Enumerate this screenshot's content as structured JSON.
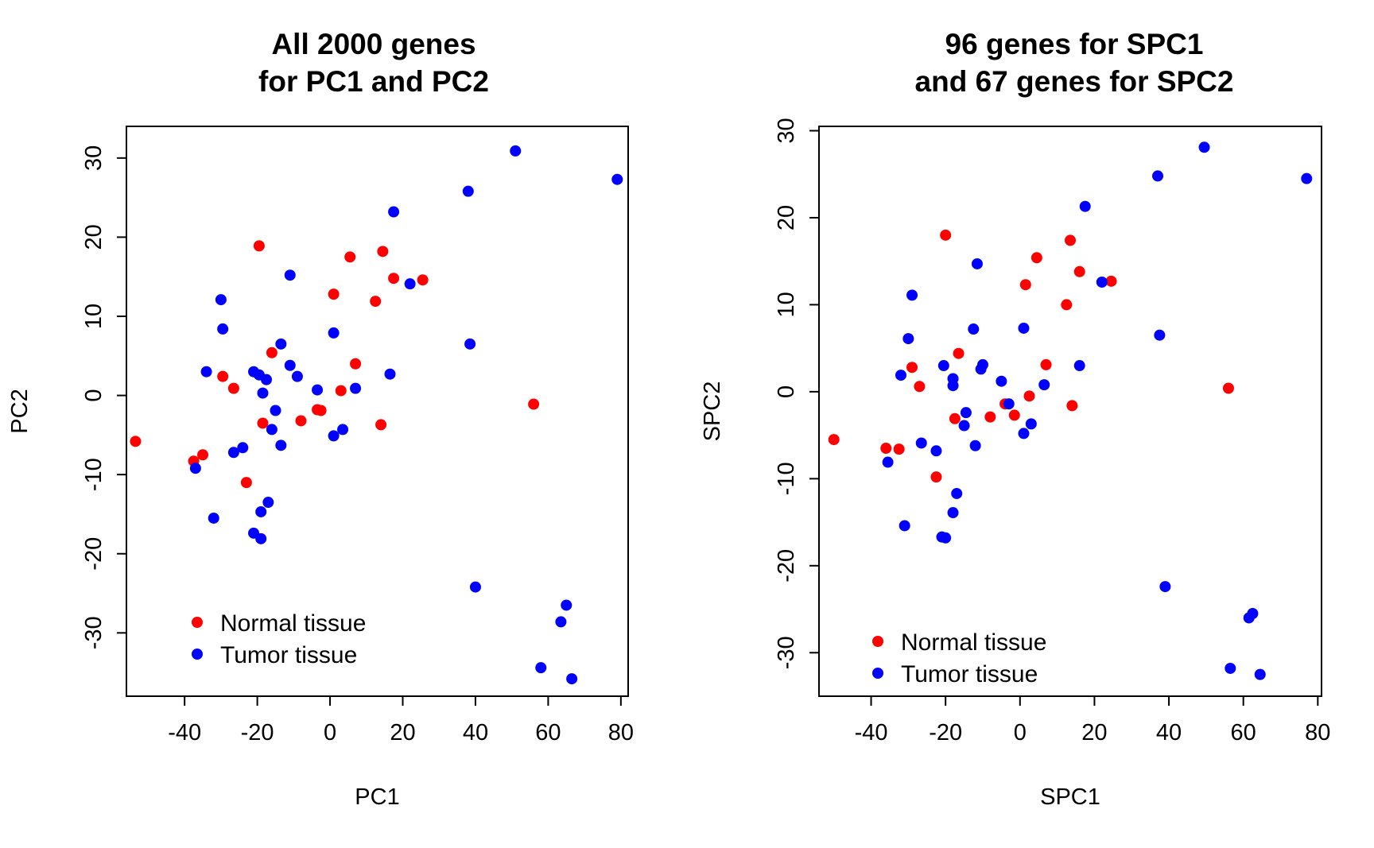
{
  "chart_data": [
    {
      "type": "scatter",
      "title": "All 2000 genes\nfor PC1 and PC2",
      "xlabel": "PC1",
      "ylabel": "PC2",
      "xlim": [
        -56,
        82
      ],
      "ylim": [
        -38,
        34
      ],
      "xticks": [
        -40,
        -20,
        0,
        20,
        40,
        60,
        80
      ],
      "yticks": [
        -30,
        -20,
        -10,
        0,
        10,
        20,
        30
      ],
      "legend": {
        "placement": "bottom-left",
        "entries": [
          "Normal tissue",
          "Tumor tissue"
        ]
      },
      "series": [
        {
          "name": "Normal tissue",
          "color": "#ff0000",
          "points": [
            [
              -53.5,
              -5.8
            ],
            [
              -37.5,
              -8.3
            ],
            [
              -35,
              -7.5
            ],
            [
              -29.5,
              2.4
            ],
            [
              -26.5,
              0.9
            ],
            [
              -23,
              -11
            ],
            [
              -19.5,
              18.9
            ],
            [
              -18.5,
              -3.5
            ],
            [
              -16,
              5.4
            ],
            [
              -8,
              -3.2
            ],
            [
              -3.5,
              -1.8
            ],
            [
              -2.5,
              -1.9
            ],
            [
              1,
              12.8
            ],
            [
              3,
              0.6
            ],
            [
              5.5,
              17.5
            ],
            [
              7,
              4
            ],
            [
              12.5,
              11.9
            ],
            [
              14,
              -3.7
            ],
            [
              14.5,
              18.2
            ],
            [
              17.5,
              14.8
            ],
            [
              25.5,
              14.6
            ],
            [
              56,
              -1.1
            ]
          ]
        },
        {
          "name": "Tumor tissue",
          "color": "#0000ff",
          "points": [
            [
              -37,
              -9.2
            ],
            [
              -34,
              3
            ],
            [
              -30,
              12.1
            ],
            [
              -29.5,
              8.4
            ],
            [
              -32,
              -15.5
            ],
            [
              -26.5,
              -7.2
            ],
            [
              -24,
              -6.6
            ],
            [
              -21,
              3
            ],
            [
              -19.5,
              2.6
            ],
            [
              -18.5,
              0.3
            ],
            [
              -17.5,
              2
            ],
            [
              -16,
              -4.3
            ],
            [
              -15,
              -1.9
            ],
            [
              -13.5,
              6.5
            ],
            [
              -13.5,
              -6.3
            ],
            [
              -11,
              3.8
            ],
            [
              -11,
              15.2
            ],
            [
              -9,
              2.4
            ],
            [
              -21,
              -17.4
            ],
            [
              -19,
              -18.1
            ],
            [
              -19,
              -14.7
            ],
            [
              -17,
              -13.5
            ],
            [
              -3.5,
              0.7
            ],
            [
              1,
              7.9
            ],
            [
              1,
              -5.1
            ],
            [
              3.5,
              -4.3
            ],
            [
              7,
              0.9
            ],
            [
              16.5,
              2.7
            ],
            [
              17.5,
              23.2
            ],
            [
              22,
              14.1
            ],
            [
              38,
              25.8
            ],
            [
              38.5,
              6.5
            ],
            [
              40,
              -24.2
            ],
            [
              51,
              30.9
            ],
            [
              79,
              27.3
            ],
            [
              58,
              -34.4
            ],
            [
              63.5,
              -28.6
            ],
            [
              65,
              -26.5
            ],
            [
              66.5,
              -35.8
            ]
          ]
        }
      ]
    },
    {
      "type": "scatter",
      "title": "96 genes for SPC1\nand 67 genes for SPC2",
      "xlabel": "SPC1",
      "ylabel": "SPC2",
      "xlim": [
        -54,
        81
      ],
      "ylim": [
        -35,
        30.5
      ],
      "xticks": [
        -40,
        -20,
        0,
        20,
        40,
        60,
        80
      ],
      "yticks": [
        -30,
        -20,
        -10,
        0,
        10,
        20,
        30
      ],
      "legend": {
        "placement": "bottom-left",
        "entries": [
          "Normal tissue",
          "Tumor tissue"
        ]
      },
      "series": [
        {
          "name": "Normal tissue",
          "color": "#ff0000",
          "points": [
            [
              -50,
              -5.5
            ],
            [
              -36,
              -6.5
            ],
            [
              -32.5,
              -6.6
            ],
            [
              -29,
              2.8
            ],
            [
              -27,
              0.6
            ],
            [
              -22.5,
              -9.8
            ],
            [
              -20,
              18
            ],
            [
              -17.5,
              -3.1
            ],
            [
              -16.5,
              4.4
            ],
            [
              -8,
              -2.9
            ],
            [
              -4,
              -1.4
            ],
            [
              -1.5,
              -2.7
            ],
            [
              1.5,
              12.3
            ],
            [
              2.5,
              -0.5
            ],
            [
              4.5,
              15.4
            ],
            [
              7,
              3.1
            ],
            [
              12.5,
              10
            ],
            [
              14,
              -1.6
            ],
            [
              13.5,
              17.4
            ],
            [
              16,
              13.8
            ],
            [
              24.5,
              12.7
            ],
            [
              56,
              0.4
            ]
          ]
        },
        {
          "name": "Tumor tissue",
          "color": "#0000ff",
          "points": [
            [
              -35.5,
              -8.1
            ],
            [
              -32,
              1.9
            ],
            [
              -30,
              6.1
            ],
            [
              -29,
              11.1
            ],
            [
              -31,
              -15.4
            ],
            [
              -26.5,
              -5.9
            ],
            [
              -22.5,
              -6.8
            ],
            [
              -20.5,
              3
            ],
            [
              -18,
              1.5
            ],
            [
              -18,
              0.7
            ],
            [
              -15,
              -3.9
            ],
            [
              -14.5,
              -2.4
            ],
            [
              -12.5,
              7.2
            ],
            [
              -12,
              -6.2
            ],
            [
              -10.5,
              2.6
            ],
            [
              -10,
              3.1
            ],
            [
              -11.5,
              14.7
            ],
            [
              -5,
              1.2
            ],
            [
              -21,
              -16.7
            ],
            [
              -20,
              -16.8
            ],
            [
              -18,
              -13.9
            ],
            [
              -17,
              -11.7
            ],
            [
              -3,
              -1.4
            ],
            [
              1,
              7.3
            ],
            [
              1,
              -4.8
            ],
            [
              3,
              -3.7
            ],
            [
              6.5,
              0.8
            ],
            [
              16,
              3
            ],
            [
              17.5,
              21.3
            ],
            [
              22,
              12.6
            ],
            [
              37,
              24.8
            ],
            [
              37.5,
              6.5
            ],
            [
              39,
              -22.4
            ],
            [
              49.5,
              28.1
            ],
            [
              77,
              24.5
            ],
            [
              56.5,
              -31.8
            ],
            [
              61.5,
              -26
            ],
            [
              62.5,
              -25.5
            ],
            [
              64.5,
              -32.5
            ]
          ]
        }
      ]
    }
  ]
}
